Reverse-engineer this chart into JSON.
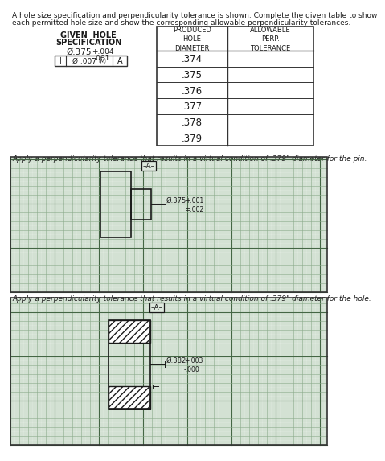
{
  "title_line1": "A hole size specification and perpendicularity tolerance is shown. Complete the given table to show",
  "title_line2": "each permitted hole size and show the corresponding allowable perpendicularity tolerances.",
  "given_hole_label1": "GIVEN  HOLE",
  "given_hole_label2": "SPECIFICATION",
  "hole_size_main": "Ø.375",
  "hole_size_upper": "+.004",
  "hole_size_lower": "-.001",
  "col1_header": "PRODUCED\nHOLE\nDIAMETER",
  "col2_header": "ALLOWABLE\nPERP.\nTOLERANCE",
  "produced_diameters": [
    ".374",
    ".375",
    ".376",
    ".377",
    ".378",
    ".379"
  ],
  "caption1": "Apply a perpendicularity tolerance that results in a virtual condition of .379\" diameter for the pin.",
  "caption2": "Apply a perpendicularity tolerance that results in a virtual condition of .379\" diameter for the hole.",
  "dim1_main": "Ø.375",
  "dim1_upper": "+.001",
  "dim1_lower": "=.002",
  "dim2_main": "Ø.382",
  "dim2_upper": "+.003",
  "dim2_lower": "-.000",
  "bg": "#ffffff",
  "grid_bg": "#dde8dd",
  "grid_major": "#8aaa8a",
  "grid_minor": "#bbd0bb",
  "grid_dark": "#446644",
  "tc": "#1a1a1a",
  "tbc": "#333333"
}
